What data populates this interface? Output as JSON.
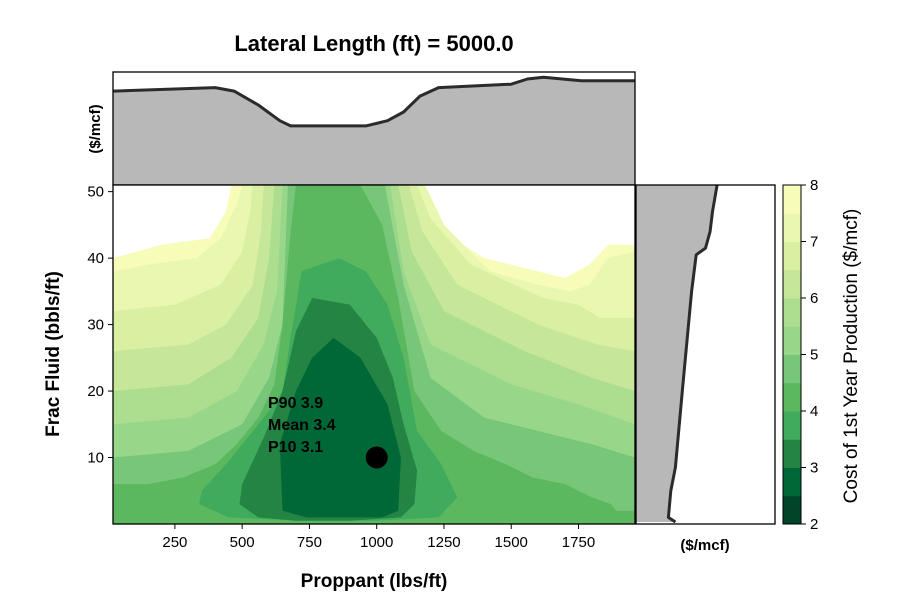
{
  "chart_data": {
    "type": "heatmap",
    "title": "Lateral Length (ft) = 5000.0",
    "xlabel": "Proppant (lbs/ft)",
    "ylabel": "Frac Fluid (bbls/ft)",
    "top_marginal_ylabel": "($/mcf)",
    "right_marginal_xlabel": "($/mcf)",
    "colorbar_label": "Cost of 1st Year Production ($/mcf)",
    "xlim": [
      20,
      1960
    ],
    "ylim": [
      0,
      51
    ],
    "x_ticks": [
      250,
      500,
      750,
      1000,
      1250,
      1500,
      1750
    ],
    "y_ticks": [
      10,
      20,
      30,
      40,
      50
    ],
    "colorbar": {
      "range": [
        2,
        8
      ],
      "ticks": [
        2,
        3,
        4,
        5,
        6,
        7,
        8
      ],
      "levels": [
        2.0,
        2.5,
        3.0,
        3.5,
        4.0,
        4.5,
        5.0,
        5.5,
        6.0,
        6.5,
        7.0,
        7.5,
        8.0
      ],
      "colors": [
        "#004529",
        "#006837",
        "#238443",
        "#41ab5d",
        "#5cb85f",
        "#78c679",
        "#98d78a",
        "#addd8e",
        "#c6e699",
        "#d9f0a3",
        "#eaf7b1",
        "#f7fcb9",
        "#ffffe5"
      ]
    },
    "contour_bands": [
      {
        "level": 3.0,
        "x": [
          640,
          700,
          760,
          840,
          940,
          1040,
          1090,
          1080,
          1020,
          880,
          740,
          650
        ],
        "y": [
          12,
          20,
          25,
          28,
          25,
          18,
          10,
          2,
          1,
          1,
          1,
          2
        ]
      },
      {
        "level": 3.5,
        "x": [
          500,
          580,
          650,
          700,
          760,
          900,
          1000,
          1060,
          1100,
          1150,
          1140,
          1090,
          900,
          700,
          560,
          490
        ],
        "y": [
          6,
          13,
          20,
          29,
          34,
          33,
          28,
          22,
          15,
          8,
          3,
          1,
          0.5,
          0.5,
          1,
          3
        ]
      },
      {
        "level": 4.0,
        "x": [
          350,
          440,
          520,
          600,
          650,
          680,
          720,
          860,
          960,
          1040,
          1100,
          1150,
          1240,
          1300,
          1230,
          1000,
          700,
          450,
          340
        ],
        "y": [
          5,
          9,
          13,
          17,
          20,
          28,
          38,
          40,
          38,
          33,
          25,
          14,
          9,
          4,
          1,
          0.5,
          0.5,
          1,
          3
        ]
      },
      {
        "level": 4.5,
        "x": [
          20,
          150,
          280,
          400,
          480,
          560,
          620,
          650,
          680,
          700,
          760,
          840,
          940,
          1020,
          1080,
          1140,
          1240,
          1360,
          1480,
          1580,
          1700,
          1800,
          1870,
          1890,
          1960,
          1960,
          20
        ],
        "y": [
          6,
          6,
          7,
          9,
          12,
          16,
          21,
          30,
          44,
          51,
          51,
          51,
          51,
          45,
          34,
          20,
          14,
          11,
          9,
          7,
          6,
          4,
          3,
          2,
          2,
          0,
          0
        ]
      },
      {
        "level": 5.0,
        "x": [
          20,
          300,
          500,
          600,
          650,
          670,
          1030,
          1100,
          1200,
          1400,
          1600,
          1800,
          1960,
          1960,
          20
        ],
        "y": [
          10,
          11,
          15,
          22,
          30,
          51,
          51,
          36,
          22,
          16,
          14,
          12,
          10,
          0,
          0
        ]
      },
      {
        "level": 5.5,
        "x": [
          20,
          300,
          480,
          580,
          630,
          650,
          1050,
          1100,
          1200,
          1500,
          1750,
          1960,
          1960,
          20
        ],
        "y": [
          15,
          16,
          20,
          27,
          35,
          51,
          51,
          38,
          27,
          21,
          18,
          15,
          0,
          0
        ]
      },
      {
        "level": 6.0,
        "x": [
          20,
          300,
          460,
          560,
          600,
          620,
          1080,
          1130,
          1250,
          1550,
          1800,
          1960,
          1960,
          20
        ],
        "y": [
          20,
          21,
          25,
          31,
          40,
          51,
          51,
          41,
          32,
          26,
          22,
          20,
          0,
          0
        ]
      },
      {
        "level": 6.5,
        "x": [
          20,
          300,
          440,
          540,
          570,
          580,
          1120,
          1170,
          1300,
          1600,
          1820,
          1960,
          1960,
          20
        ],
        "y": [
          26,
          27,
          30,
          36,
          44,
          51,
          51,
          44,
          36,
          30,
          27,
          26,
          0,
          0
        ]
      },
      {
        "level": 7.0,
        "x": [
          20,
          250,
          420,
          500,
          530,
          540,
          1150,
          1200,
          1350,
          1620,
          1750,
          1830,
          1960,
          1960,
          20
        ],
        "y": [
          32,
          33,
          36,
          41,
          47,
          51,
          51,
          46,
          39,
          34,
          33,
          31,
          31,
          0,
          0
        ]
      },
      {
        "level": 7.5,
        "x": [
          20,
          150,
          330,
          420,
          480,
          500,
          1180,
          1250,
          1420,
          1600,
          1720,
          1790,
          1860,
          1960,
          1960,
          20
        ],
        "y": [
          38,
          39,
          40,
          43,
          48,
          51,
          51,
          45,
          38,
          36,
          35,
          36,
          40,
          41,
          0,
          0
        ]
      },
      {
        "level": 8.0,
        "x": [
          20,
          200,
          380,
          440,
          460,
          1160,
          1240,
          1400,
          1600,
          1700,
          1790,
          1860,
          1960,
          1960,
          20
        ],
        "y": [
          40,
          42,
          43,
          47,
          51,
          51,
          44,
          40,
          38,
          37,
          39,
          42,
          42,
          0,
          0
        ]
      }
    ],
    "top_marginal": {
      "ylim": [
        0,
        6.5
      ],
      "x": [
        20,
        400,
        470,
        560,
        640,
        680,
        960,
        1040,
        1100,
        1160,
        1230,
        1500,
        1560,
        1620,
        1760,
        1960
      ],
      "values": [
        5.4,
        5.6,
        5.4,
        4.6,
        3.7,
        3.4,
        3.4,
        3.7,
        4.2,
        5.1,
        5.6,
        5.8,
        6.1,
        6.2,
        6.0,
        6.0
      ]
    },
    "right_marginal": {
      "xlim": [
        2,
        8
      ],
      "y": [
        0.3,
        1.0,
        5.0,
        8.5,
        20,
        35,
        40.5,
        41.5,
        44,
        47,
        51
      ],
      "values": [
        3.7,
        3.4,
        3.5,
        3.7,
        4.0,
        4.4,
        4.6,
        5.0,
        5.2,
        5.3,
        5.5
      ]
    },
    "point": {
      "x": 1000,
      "y": 10
    },
    "annotation": {
      "p90": "P90 3.9",
      "mean": "Mean 3.4",
      "p10": "P10 3.1"
    }
  }
}
